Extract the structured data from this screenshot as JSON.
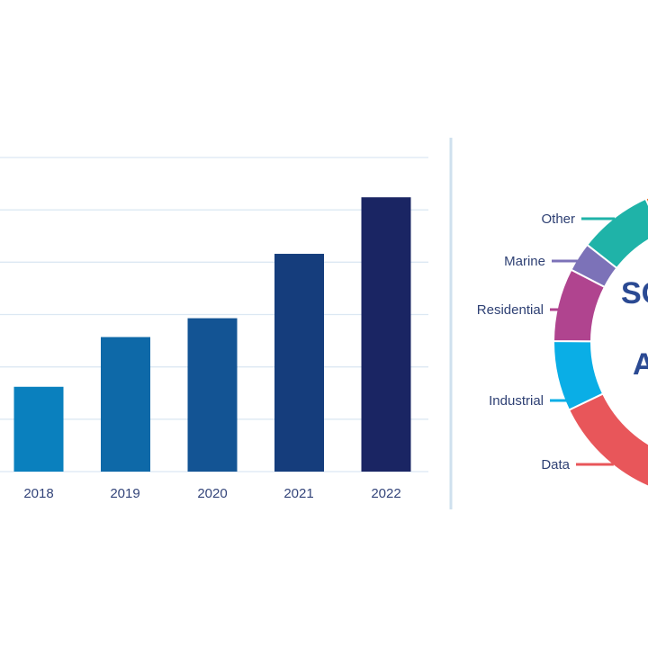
{
  "chart_data": [
    {
      "type": "bar",
      "title": "",
      "xlabel": "",
      "ylabel": "",
      "categories": [
        "2018",
        "2019",
        "2020",
        "2021",
        "2022"
      ],
      "values": [
        1.62,
        2.57,
        2.93,
        4.16,
        5.24
      ],
      "ylim": [
        0,
        6
      ],
      "grid": true,
      "colors": [
        "#0a80be",
        "#0e69a8",
        "#135494",
        "#153d7c",
        "#1a2563"
      ]
    },
    {
      "type": "pie",
      "donut": true,
      "segments": [
        {
          "name": "Data",
          "value": 26.0,
          "color": "#e8565a"
        },
        {
          "name": "Industrial",
          "value": 7.2,
          "color": "#0aaee6"
        },
        {
          "name": "Residential",
          "value": 7.5,
          "color": "#b0448f"
        },
        {
          "name": "Marine",
          "value": 3.0,
          "color": "#7c72b8"
        },
        {
          "name": "Other",
          "value": 7.6,
          "color": "#1fb3a8"
        },
        {
          "name": "",
          "value": 10.0,
          "color": "#e86a1e"
        }
      ],
      "center_text": [
        "SO",
        "A"
      ],
      "label_color": "#2f4174"
    }
  ]
}
